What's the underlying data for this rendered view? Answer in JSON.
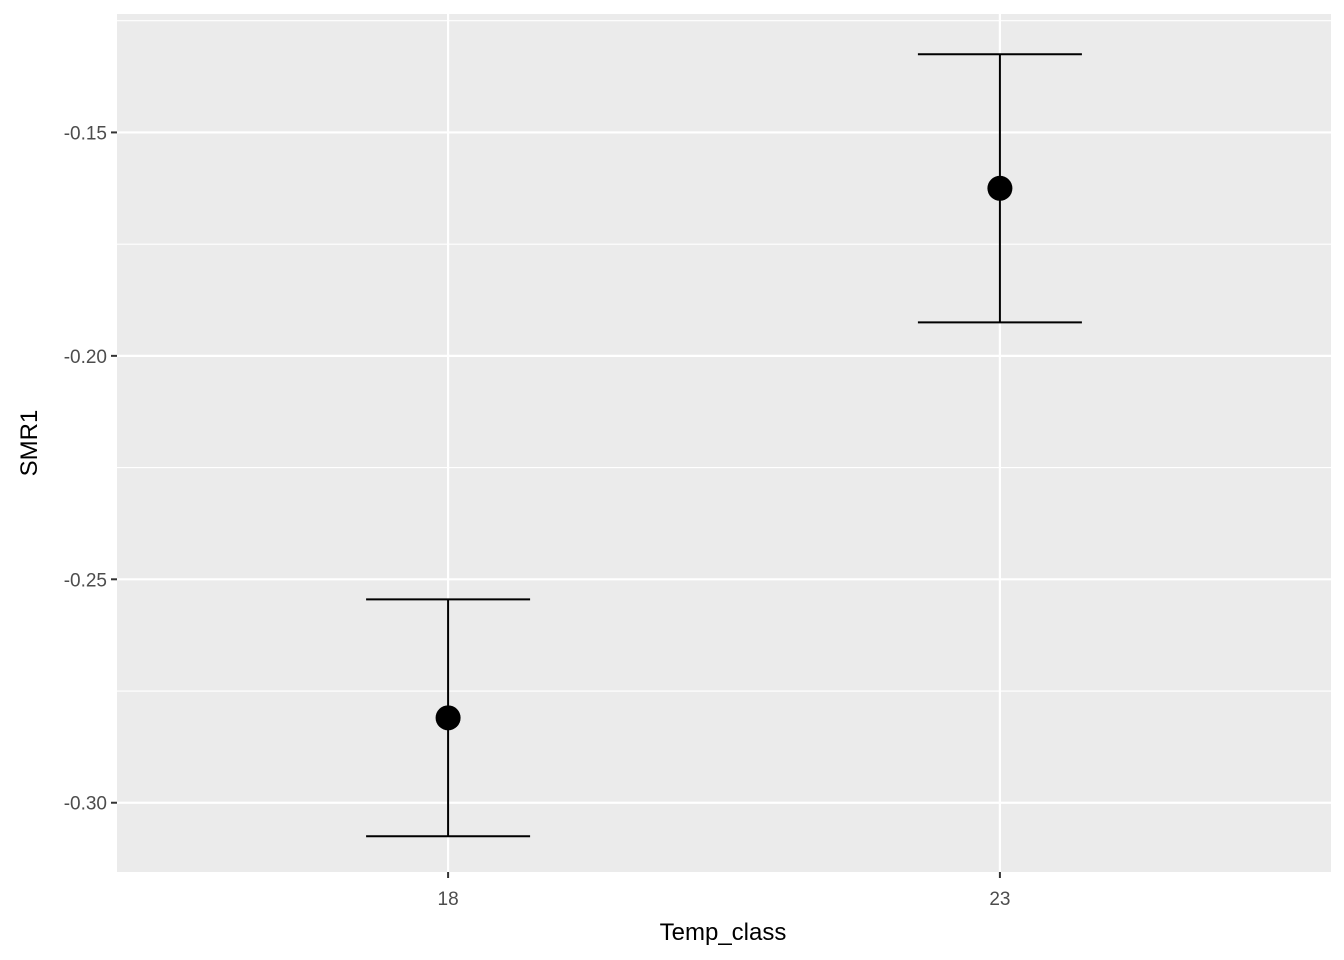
{
  "chart_data": {
    "type": "scatter",
    "subtype": "pointrange-errorbar",
    "title": "",
    "xlabel": "Temp_class",
    "ylabel": "SMR1",
    "categories": [
      "18",
      "23"
    ],
    "values": [
      -0.281,
      -0.1625
    ],
    "error_low": [
      -0.3075,
      -0.1925
    ],
    "error_high": [
      -0.2545,
      -0.1325
    ],
    "ylim": [
      -0.3155,
      -0.1235
    ],
    "y_ticks": [
      -0.3,
      -0.25,
      -0.2,
      -0.15
    ],
    "y_tick_labels": [
      "-0.30",
      "-0.25",
      "-0.20",
      "-0.15"
    ],
    "grid": true,
    "colors": {
      "panel_background": "#ebebeb",
      "grid_line": "#ffffff",
      "point": "#000000",
      "error_bar": "#000000"
    }
  }
}
